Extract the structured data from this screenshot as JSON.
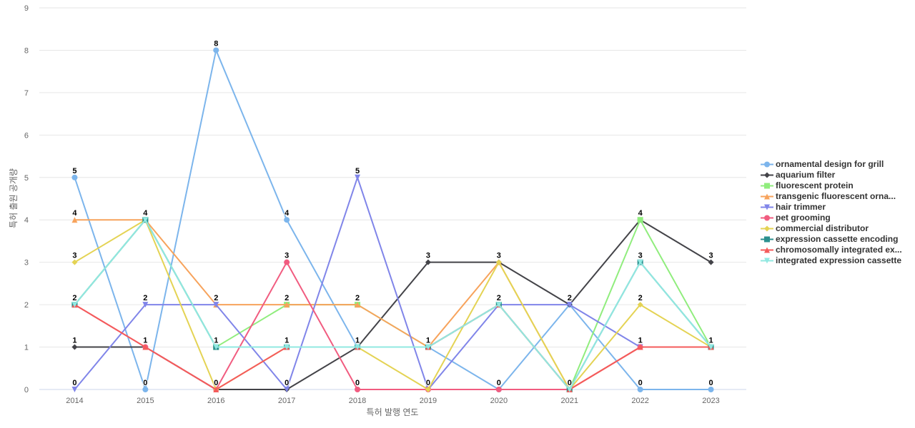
{
  "chart_data": {
    "type": "line",
    "title": "",
    "xlabel": "특허 발행 연도",
    "ylabel": "특허 출원 공개량",
    "ylim": [
      0,
      9
    ],
    "yticks": [
      0,
      1,
      2,
      3,
      4,
      5,
      6,
      7,
      8,
      9
    ],
    "grid": true,
    "legend_position": "right",
    "categories": [
      "2014",
      "2015",
      "2016",
      "2017",
      "2018",
      "2019",
      "2020",
      "2021",
      "2022",
      "2023"
    ],
    "series": [
      {
        "name": "ornamental design for grill",
        "color": "#7cb5ec",
        "marker": "circle",
        "values": [
          5,
          0,
          8,
          4,
          1,
          1,
          0,
          2,
          0,
          0
        ]
      },
      {
        "name": "aquarium filter",
        "color": "#434348",
        "marker": "diamond",
        "values": [
          1,
          1,
          0,
          0,
          1,
          3,
          3,
          2,
          4,
          3
        ]
      },
      {
        "name": "fluorescent protein",
        "color": "#90ed7d",
        "marker": "square",
        "values": [
          2,
          4,
          1,
          2,
          2,
          1,
          2,
          0,
          4,
          1
        ]
      },
      {
        "name": "transgenic fluorescent orna...",
        "color": "#f7a35c",
        "marker": "triangle",
        "values": [
          4,
          4,
          2,
          2,
          2,
          1,
          3,
          0,
          1,
          1
        ]
      },
      {
        "name": "hair trimmer",
        "color": "#8085e9",
        "marker": "triangle-down",
        "values": [
          0,
          2,
          2,
          0,
          5,
          0,
          2,
          2,
          1,
          1
        ]
      },
      {
        "name": "pet grooming",
        "color": "#f15c80",
        "marker": "circle",
        "values": [
          2,
          1,
          0,
          3,
          0,
          0,
          0,
          0,
          1,
          1
        ]
      },
      {
        "name": "commercial distributor",
        "color": "#e4d354",
        "marker": "diamond",
        "values": [
          3,
          4,
          0,
          1,
          1,
          0,
          3,
          0,
          2,
          1
        ]
      },
      {
        "name": "expression cassette encoding",
        "color": "#2b908f",
        "marker": "square",
        "values": [
          2,
          4,
          1,
          1,
          1,
          1,
          2,
          0,
          3,
          1
        ]
      },
      {
        "name": "chromosomally integrated ex...",
        "color": "#f45b5b",
        "marker": "triangle",
        "values": [
          2,
          1,
          0,
          1,
          1,
          1,
          2,
          0,
          1,
          1
        ]
      },
      {
        "name": "integrated expression cassette",
        "color": "#91e8e1",
        "marker": "triangle-down",
        "values": [
          2,
          4,
          1,
          1,
          1,
          1,
          2,
          0,
          3,
          1
        ]
      }
    ],
    "data_labels": [
      {
        "category": "2014",
        "values": [
          5,
          4,
          3,
          2,
          1,
          0
        ]
      },
      {
        "category": "2015",
        "values": [
          4,
          2,
          1,
          0
        ]
      },
      {
        "category": "2016",
        "values": [
          8,
          2,
          1,
          0
        ]
      },
      {
        "category": "2017",
        "values": [
          4,
          3,
          2,
          1,
          0
        ]
      },
      {
        "category": "2018",
        "values": [
          5,
          2,
          1,
          0
        ]
      },
      {
        "category": "2019",
        "values": [
          3,
          1,
          0
        ]
      },
      {
        "category": "2020",
        "values": [
          3,
          2,
          0
        ]
      },
      {
        "category": "2021",
        "values": [
          2,
          0
        ]
      },
      {
        "category": "2022",
        "values": [
          4,
          3,
          2,
          1,
          0
        ]
      },
      {
        "category": "2023",
        "values": [
          3,
          1,
          0
        ]
      }
    ]
  }
}
